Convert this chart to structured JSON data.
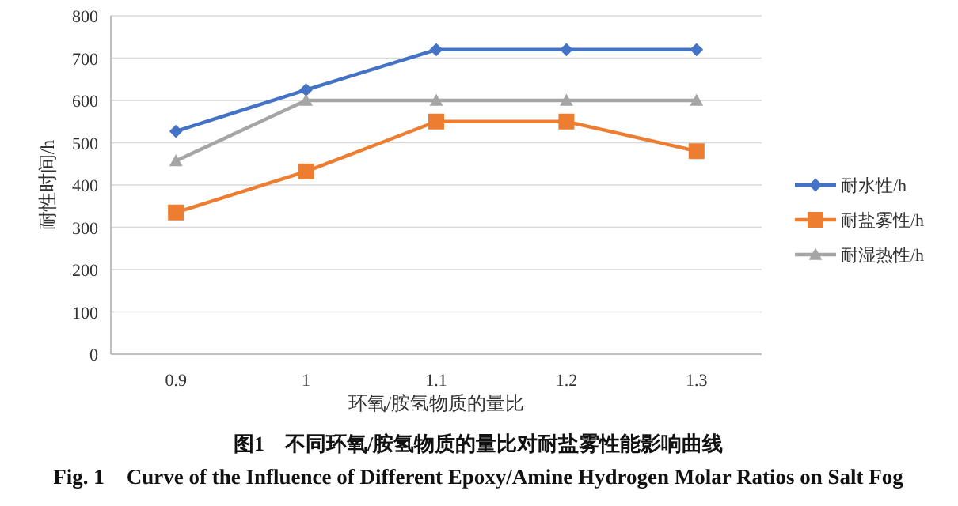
{
  "chart_data": {
    "type": "line",
    "title": "图1　不同环氧/胺氢物质的量比对耐盐雾性能影响曲线",
    "subtitle": "Fig. 1　Curve of the Influence of Different Epoxy/Amine Hydrogen Molar Ratios on Salt Fog",
    "xlabel": "环氧/胺氢物质的量比",
    "ylabel": "耐性时间/h",
    "categories": [
      "0.9",
      "1",
      "1.1",
      "1.2",
      "1.3"
    ],
    "ylim": [
      0,
      800
    ],
    "yticks": [
      0,
      100,
      200,
      300,
      400,
      500,
      600,
      700,
      800
    ],
    "grid": "y",
    "legend": "right",
    "line_style": "solid",
    "series": [
      {
        "name": "耐水性/h",
        "color": "#4472c4",
        "marker": "diamond",
        "values": [
          527,
          625,
          720,
          720,
          720
        ]
      },
      {
        "name": "耐盐雾性/h",
        "color": "#ed7d31",
        "marker": "square",
        "values": [
          335,
          432,
          550,
          550,
          480
        ]
      },
      {
        "name": "耐湿热性/h",
        "color": "#a5a5a5",
        "marker": "triangle",
        "values": [
          457,
          600,
          600,
          600,
          600
        ]
      }
    ]
  }
}
